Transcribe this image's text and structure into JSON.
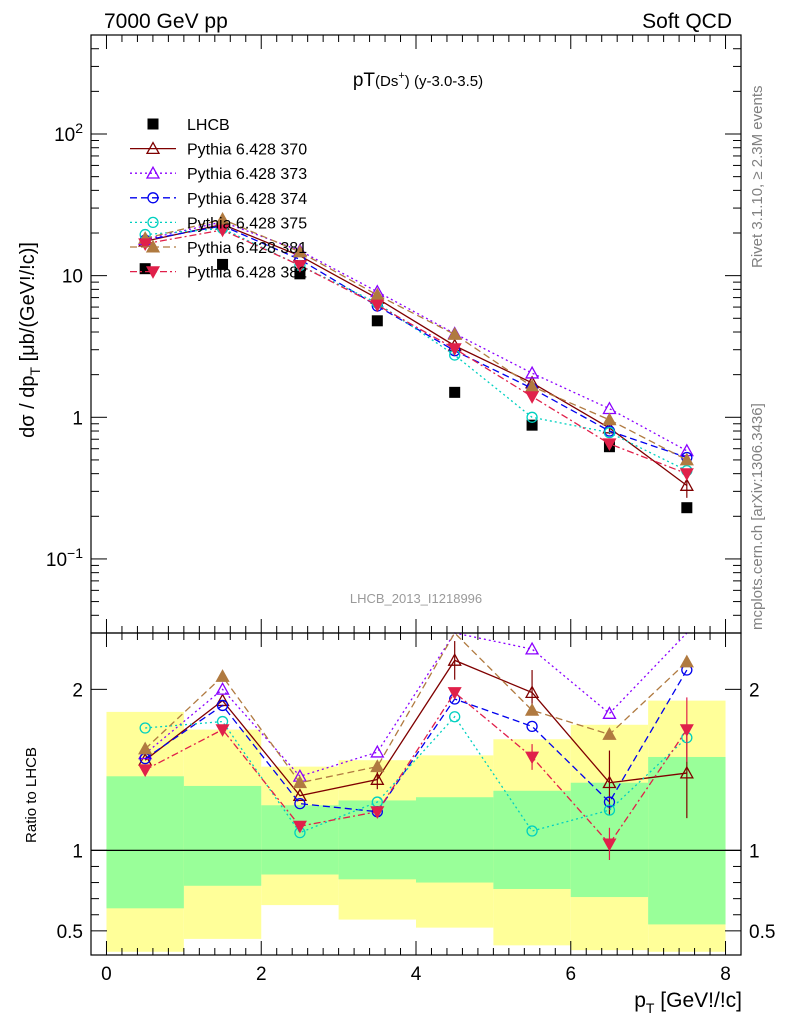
{
  "header": {
    "left": "7000 GeV pp",
    "right": "Soft QCD"
  },
  "side": {
    "rivet": "Rivet 3.1.10, ≥ 2.3M events",
    "mcplots": "mcplots.cern.ch [arXiv:1306.3436]"
  },
  "chart_data": [
    {
      "type": "line",
      "title": "pT(Ds⁺) (y-3.0-3.5)",
      "title_main": "pT",
      "title_paren": "(Ds",
      "title_sup": "+",
      "title_rest": ") (y-3.0-3.5)",
      "ylabel": "dσ / dp",
      "ylabel_sub": "T",
      "ylabel_unit": " [μb/(GeV!/!c)]",
      "yscale": "log",
      "xlim": [
        -0.2,
        8.2
      ],
      "ylim": [
        0.03,
        500
      ],
      "yticks": [
        {
          "value": 0.1,
          "base": "10",
          "exp": "−1"
        },
        {
          "value": 1,
          "base": "1",
          "exp": ""
        },
        {
          "value": 10,
          "base": "10",
          "exp": ""
        },
        {
          "value": 100,
          "base": "10",
          "exp": "2"
        }
      ],
      "watermark": "LHCB_2013_I1218996",
      "legend_position": "top-left",
      "series": [
        {
          "name": "LHCB",
          "color": "#000000",
          "marker": "square",
          "dash": "none",
          "x": [
            0.5,
            1.5,
            2.5,
            3.5,
            4.5,
            5.5,
            6.5,
            7.5
          ],
          "y": [
            11.2,
            12.0,
            10.3,
            4.8,
            1.5,
            0.88,
            0.62,
            0.23
          ]
        },
        {
          "name": "Pythia 6.428 370",
          "color": "#7f0000",
          "marker": "triangle-open",
          "dash": "solid",
          "x": [
            0.5,
            1.5,
            2.5,
            3.5,
            4.5,
            5.5,
            6.5,
            7.5
          ],
          "y": [
            17.5,
            23.0,
            13.8,
            6.9,
            3.2,
            1.75,
            0.84,
            0.33
          ],
          "err": [
            0,
            0,
            0,
            0,
            0,
            0.1,
            0.08,
            0.06
          ]
        },
        {
          "name": "Pythia 6.428 373",
          "color": "#8b00ff",
          "marker": "triangle-open",
          "dash": "dot",
          "x": [
            0.5,
            1.5,
            2.5,
            3.5,
            4.5,
            5.5,
            6.5,
            7.5
          ],
          "y": [
            18.0,
            24.0,
            15.0,
            7.7,
            3.9,
            2.05,
            1.15,
            0.58
          ]
        },
        {
          "name": "Pythia 6.428 374",
          "color": "#0000ee",
          "marker": "circle-open",
          "dash": "dash",
          "x": [
            0.5,
            1.5,
            2.5,
            3.5,
            4.5,
            5.5,
            6.5,
            7.5
          ],
          "y": [
            17.8,
            22.5,
            13.0,
            6.1,
            2.95,
            1.6,
            0.8,
            0.52
          ]
        },
        {
          "name": "Pythia 6.428 375",
          "color": "#00d0c0",
          "marker": "circle-open",
          "dash": "dot",
          "x": [
            0.5,
            1.5,
            2.5,
            3.5,
            4.5,
            5.5,
            6.5,
            7.5
          ],
          "y": [
            19.5,
            21.5,
            11.8,
            6.4,
            2.75,
            1.0,
            0.78,
            0.42
          ]
        },
        {
          "name": "Pythia 6.428 381",
          "color": "#b07a40",
          "marker": "triangle-filled",
          "dash": "dash",
          "x": [
            0.5,
            1.5,
            2.5,
            3.5,
            4.5,
            5.5,
            6.5,
            7.5
          ],
          "y": [
            18.3,
            25.0,
            14.7,
            7.3,
            3.85,
            1.65,
            0.96,
            0.5
          ]
        },
        {
          "name": "Pythia 6.428 382",
          "color": "#e0204a",
          "marker": "triangle-down-filled",
          "dash": "dashdot",
          "x": [
            0.5,
            1.5,
            2.5,
            3.5,
            4.5,
            5.5,
            6.5,
            7.5
          ],
          "y": [
            16.8,
            21.0,
            11.8,
            6.2,
            3.05,
            1.4,
            0.65,
            0.4
          ]
        }
      ]
    },
    {
      "type": "line",
      "ylabel": "Ratio to LHCB",
      "xlabel_main": "p",
      "xlabel_sub": "T",
      "xlabel_unit": " [GeV!/!c]",
      "xlim": [
        -0.2,
        8.2
      ],
      "ylim": [
        0.35,
        2.35
      ],
      "xticks": [
        "0",
        "2",
        "4",
        "6",
        "8"
      ],
      "yticks": [
        "0.5",
        "1",
        "2"
      ],
      "band_edges": [
        0,
        1,
        2,
        3,
        4,
        5,
        6,
        7,
        8
      ],
      "band_inner": [
        {
          "lo": 0.64,
          "hi": 1.46
        },
        {
          "lo": 0.78,
          "hi": 1.4
        },
        {
          "lo": 0.85,
          "hi": 1.28
        },
        {
          "lo": 0.82,
          "hi": 1.31
        },
        {
          "lo": 0.8,
          "hi": 1.33
        },
        {
          "lo": 0.76,
          "hi": 1.37
        },
        {
          "lo": 0.71,
          "hi": 1.42
        },
        {
          "lo": 0.54,
          "hi": 1.58
        }
      ],
      "band_outer": [
        {
          "lo": 0.37,
          "hi": 1.86
        },
        {
          "lo": 0.45,
          "hi": 1.75
        },
        {
          "lo": 0.66,
          "hi": 1.52
        },
        {
          "lo": 0.57,
          "hi": 1.56
        },
        {
          "lo": 0.52,
          "hi": 1.59
        },
        {
          "lo": 0.41,
          "hi": 1.69
        },
        {
          "lo": 0.38,
          "hi": 1.78
        },
        {
          "lo": 0.37,
          "hi": 1.93
        }
      ],
      "series": [
        {
          "name": "Pythia 6.428 370",
          "color": "#7f0000",
          "marker": "triangle-open",
          "dash": "solid",
          "x": [
            0.5,
            1.5,
            2.5,
            3.5,
            4.5,
            5.5,
            6.5,
            7.5
          ],
          "y": [
            1.56,
            1.93,
            1.34,
            1.44,
            2.18,
            1.98,
            1.42,
            1.48
          ],
          "err": [
            0,
            0,
            0,
            0.06,
            0.12,
            0.14,
            0.2,
            0.28
          ]
        },
        {
          "name": "Pythia 6.428 373",
          "color": "#8b00ff",
          "marker": "triangle-open",
          "dash": "dot",
          "x": [
            0.5,
            1.5,
            2.5,
            3.5,
            4.5,
            5.5,
            6.5,
            7.5
          ],
          "y": [
            1.6,
            2.0,
            1.46,
            1.61,
            2.6,
            2.25,
            1.85,
            2.5
          ]
        },
        {
          "name": "Pythia 6.428 374",
          "color": "#0000ee",
          "marker": "circle-open",
          "dash": "dash",
          "x": [
            0.5,
            1.5,
            2.5,
            3.5,
            4.5,
            5.5,
            6.5,
            7.5
          ],
          "y": [
            1.57,
            1.9,
            1.29,
            1.24,
            1.94,
            1.77,
            1.3,
            2.12
          ]
        },
        {
          "name": "Pythia 6.428 375",
          "color": "#00d0c0",
          "marker": "circle-open",
          "dash": "dot",
          "x": [
            0.5,
            1.5,
            2.5,
            3.5,
            4.5,
            5.5,
            6.5,
            7.5
          ],
          "y": [
            1.76,
            1.8,
            1.11,
            1.3,
            1.83,
            1.12,
            1.25,
            1.7
          ]
        },
        {
          "name": "Pythia 6.428 381",
          "color": "#b07a40",
          "marker": "triangle-filled",
          "dash": "dash",
          "x": [
            0.5,
            1.5,
            2.5,
            3.5,
            4.5,
            5.5,
            6.5,
            7.5
          ],
          "y": [
            1.63,
            2.08,
            1.42,
            1.52,
            2.55,
            1.87,
            1.72,
            2.17
          ]
        },
        {
          "name": "Pythia 6.428 382",
          "color": "#e0204a",
          "marker": "triangle-down-filled",
          "dash": "dashdot",
          "x": [
            0.5,
            1.5,
            2.5,
            3.5,
            4.5,
            5.5,
            6.5,
            7.5
          ],
          "y": [
            1.5,
            1.75,
            1.15,
            1.24,
            1.98,
            1.58,
            1.04,
            1.75
          ],
          "err": [
            0,
            0,
            0,
            0,
            0,
            0.08,
            0.1,
            0.2
          ]
        }
      ]
    }
  ]
}
